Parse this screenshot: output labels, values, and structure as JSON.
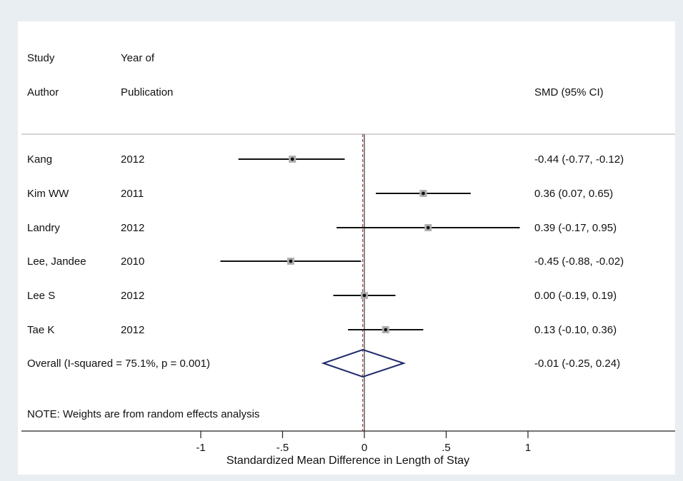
{
  "headers": {
    "study_line1": "Study",
    "study_line2": "Author",
    "year_line1": "Year of",
    "year_line2": "Publication",
    "smd": "SMD (95% CI)"
  },
  "note": "NOTE: Weights are from random effects analysis",
  "chart_data": {
    "type": "forest",
    "xlabel": "Standardized Mean Difference in Length of Stay",
    "xlim": [
      -1,
      1
    ],
    "xticks": [
      {
        "value": -1,
        "label": "-1"
      },
      {
        "value": -0.5,
        "label": "-.5"
      },
      {
        "value": 0,
        "label": "0"
      },
      {
        "value": 0.5,
        "label": ".5"
      },
      {
        "value": 1,
        "label": "1"
      }
    ],
    "null_line": 0,
    "studies": [
      {
        "author": "Kang",
        "year": "2012",
        "smd": -0.44,
        "lower": -0.77,
        "upper": -0.12,
        "label": "-0.44 (-0.77, -0.12)"
      },
      {
        "author": "Kim WW",
        "year": "2011",
        "smd": 0.36,
        "lower": 0.07,
        "upper": 0.65,
        "label": "0.36 (0.07, 0.65)"
      },
      {
        "author": "Landry",
        "year": "2012",
        "smd": 0.39,
        "lower": -0.17,
        "upper": 0.95,
        "label": "0.39 (-0.17, 0.95)"
      },
      {
        "author": "Lee, Jandee",
        "year": "2010",
        "smd": -0.45,
        "lower": -0.88,
        "upper": -0.02,
        "label": "-0.45 (-0.88, -0.02)"
      },
      {
        "author": "Lee S",
        "year": "2012",
        "smd": 0.0,
        "lower": -0.19,
        "upper": 0.19,
        "label": "0.00 (-0.19, 0.19)"
      },
      {
        "author": "Tae K",
        "year": "2012",
        "smd": 0.13,
        "lower": -0.1,
        "upper": 0.36,
        "label": "0.13 (-0.10, 0.36)"
      }
    ],
    "overall": {
      "label_text": "Overall  (I-squared = 75.1%, p = 0.001)",
      "smd": -0.01,
      "lower": -0.25,
      "upper": 0.24,
      "label": "-0.01 (-0.25, 0.24)"
    },
    "colors": {
      "overall_diamond": "#1f2a6b",
      "null_line": "#8b1a1a",
      "study_box": "#b0b0b0"
    }
  }
}
